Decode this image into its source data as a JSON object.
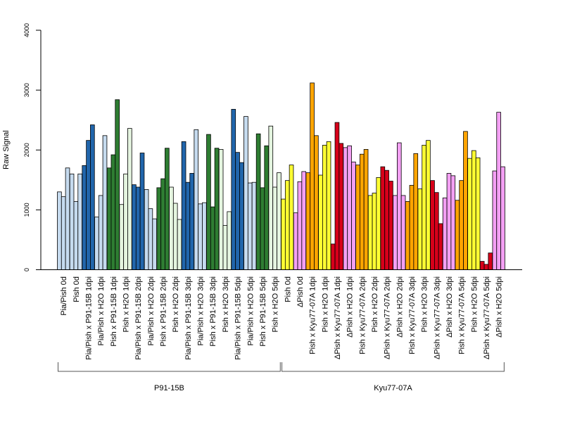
{
  "chart_data": {
    "type": "bar",
    "ylabel": "Raw Signal",
    "ylim": [
      0,
      4000
    ],
    "yticks": [
      0,
      1000,
      2000,
      3000,
      4000
    ],
    "colors": {
      "light_blue": "#c6dbef",
      "dark_blue": "#2166ac",
      "light_green": "#e5f5e0",
      "dark_green": "#2e7d32",
      "yellow": "#ffff33",
      "violet": "#f4a0f4",
      "orange": "#ffa500",
      "red": "#d7001a"
    },
    "categories": [
      {
        "label": "Pia/Pish 0d",
        "color": "light_blue",
        "values": [
          1300,
          1220,
          1700
        ]
      },
      {
        "label": "Pish 0d",
        "color": "light_blue",
        "values": [
          1600,
          1140,
          1600
        ]
      },
      {
        "label": "Pia/Pish x P91-15B 1dpi",
        "color": "dark_blue",
        "values": [
          1740,
          2160,
          2420
        ]
      },
      {
        "label": "Pia/Pish x H2O 1dpi",
        "color": "light_blue",
        "values": [
          880,
          1240,
          2240
        ]
      },
      {
        "label": "Pish x P91-15B 1dpi",
        "color": "dark_green",
        "values": [
          1700,
          1920,
          2840
        ]
      },
      {
        "label": "Pish x H2O 1dpi",
        "color": "light_green",
        "values": [
          1090,
          1600,
          2360
        ]
      },
      {
        "label": "Pia/Pish x P91-15B 2dpi",
        "color": "dark_blue",
        "values": [
          1420,
          1380,
          1950
        ]
      },
      {
        "label": "Pia/Pish x H2O 2dpi",
        "color": "light_blue",
        "values": [
          1340,
          1020,
          850
        ]
      },
      {
        "label": "Pish x P91-15B 2dpi",
        "color": "dark_green",
        "values": [
          1370,
          1520,
          2030
        ]
      },
      {
        "label": "Pish x H2O 2dpi",
        "color": "light_green",
        "values": [
          1380,
          1110,
          840
        ]
      },
      {
        "label": "Pia/Pish x P91-15B 3dpi",
        "color": "dark_blue",
        "values": [
          2140,
          1460,
          1610
        ]
      },
      {
        "label": "Pia/Pish x H2O 3dpi",
        "color": "light_blue",
        "values": [
          2340,
          1100,
          1120
        ]
      },
      {
        "label": "Pish x P91-15B 3dpi",
        "color": "dark_green",
        "values": [
          2260,
          1050,
          2030
        ]
      },
      {
        "label": "Pish x H2O 3dpi",
        "color": "light_green",
        "values": [
          2010,
          740,
          970
        ]
      },
      {
        "label": "Pia/Pish x P91-15B 5dpi",
        "color": "dark_blue",
        "values": [
          2680,
          1960,
          1790
        ]
      },
      {
        "label": "Pia/Pish x H2O 5dpi",
        "color": "light_blue",
        "values": [
          2560,
          1450,
          1460
        ]
      },
      {
        "label": "Pish x P91-15B 5dpi",
        "color": "dark_green",
        "values": [
          2270,
          1370,
          2070
        ]
      },
      {
        "label": "Pish x H2O 5dpi",
        "color": "light_green",
        "values": [
          2400,
          1380,
          1620
        ]
      },
      {
        "label": "Pish 0d",
        "color": "yellow",
        "values": [
          1180,
          1490,
          1750
        ]
      },
      {
        "label": "ΔPish 0d",
        "color": "violet",
        "values": [
          950,
          1470,
          1640
        ]
      },
      {
        "label": "Pish x Kyu77-07A 1dpi",
        "color": "orange",
        "values": [
          1620,
          3120,
          2240
        ]
      },
      {
        "label": "Pish x H2O 1dpi",
        "color": "yellow",
        "values": [
          1580,
          2080,
          2140
        ]
      },
      {
        "label": "ΔPish x Kyu77-07A 1dpi",
        "color": "red",
        "values": [
          430,
          2460,
          2110
        ]
      },
      {
        "label": "ΔPish x H2O 1dpi",
        "color": "violet",
        "values": [
          2040,
          2070,
          1800
        ]
      },
      {
        "label": "Pish x Kyu77-07A 2dpi",
        "color": "orange",
        "values": [
          1750,
          1930,
          2010
        ]
      },
      {
        "label": "Pish x H2O 2dpi",
        "color": "yellow",
        "values": [
          1240,
          1280,
          1540
        ]
      },
      {
        "label": "ΔPish x Kyu77-07A 2dpi",
        "color": "red",
        "values": [
          1720,
          1660,
          1480
        ]
      },
      {
        "label": "ΔPish x H2O 2dpi",
        "color": "violet",
        "values": [
          1240,
          2120,
          1240
        ]
      },
      {
        "label": "Pish x Kyu77-07A 3dpi",
        "color": "orange",
        "values": [
          1140,
          1410,
          1940
        ]
      },
      {
        "label": "Pish x H2O 3dpi",
        "color": "yellow",
        "values": [
          1350,
          2080,
          2160
        ]
      },
      {
        "label": "ΔPish x Kyu77-07A 3dpi",
        "color": "red",
        "values": [
          1490,
          1290,
          770
        ]
      },
      {
        "label": "ΔPish x H2O 3dpi",
        "color": "violet",
        "values": [
          1200,
          1610,
          1570
        ]
      },
      {
        "label": "Pish x Kyu77-07A 5dpi",
        "color": "orange",
        "values": [
          1160,
          1490,
          2310
        ]
      },
      {
        "label": "Pish x H2O 5dpi",
        "color": "yellow",
        "values": [
          1860,
          1990,
          1870
        ]
      },
      {
        "label": "ΔPish x Kyu77-07A 5dpi",
        "color": "red",
        "values": [
          140,
          90,
          280
        ]
      },
      {
        "label": "ΔPish x H2O 5dpi",
        "color": "violet",
        "values": [
          1650,
          2630,
          1720
        ]
      }
    ],
    "groups": [
      {
        "label": "P91-15B",
        "first": 0,
        "last": 17
      },
      {
        "label": "Kyu77-07A",
        "first": 18,
        "last": 35
      }
    ]
  }
}
